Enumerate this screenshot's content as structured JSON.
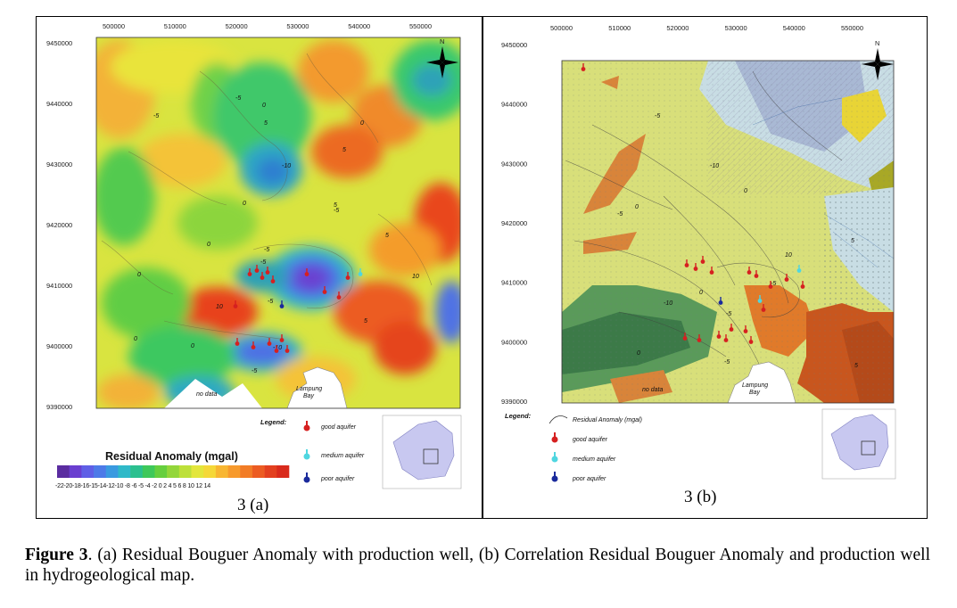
{
  "panel_a": {
    "label": "3 (a)",
    "x_ticks": [
      "500000",
      "510000",
      "520000",
      "530000",
      "540000",
      "550000"
    ],
    "y_ticks": [
      "9450000",
      "9440000",
      "9430000",
      "9420000",
      "9410000",
      "9400000",
      "9390000"
    ],
    "contour_labels": [
      "-5",
      "0",
      "-5",
      "5",
      "0",
      "-10",
      "5",
      "0",
      "-5",
      "0",
      "-5",
      "5",
      "10",
      "-5",
      "0",
      "10",
      "-5",
      "5",
      "0",
      "-10",
      "-5",
      "0",
      "5"
    ],
    "place_no_data": "no data",
    "place_bay_line1": "Lampung",
    "place_bay_line2": "Bay",
    "north": "N",
    "legend_title": "Legend:",
    "legend_good": "good aquifer",
    "legend_medium": "medium aquifer",
    "legend_poor": "poor aquifer",
    "ramp_title": "Residual Anomaly (mgal)",
    "ramp_ticks": "-22-20-18-16-15-14-12-10 -8  -6  -5  -4  -2  0   2   4   5   6   8  10 12 14"
  },
  "panel_b": {
    "label": "3 (b)",
    "x_ticks": [
      "500000",
      "510000",
      "520000",
      "530000",
      "540000",
      "550000"
    ],
    "y_ticks": [
      "9450000",
      "9440000",
      "9430000",
      "9420000",
      "9410000",
      "9400000",
      "9390000"
    ],
    "contour_labels": [
      "-5",
      "0",
      "-5",
      "-10",
      "0",
      "5",
      "-10",
      "-5",
      "0",
      "10",
      "-5",
      "0",
      "-5",
      "5"
    ],
    "place_no_data": "no data",
    "place_bay_line1": "Lampung",
    "place_bay_line2": "Bay",
    "north": "N",
    "legend_title": "Legend:",
    "legend_contour": "Residual Anomaly (mgal)",
    "legend_good": "good aquifer",
    "legend_medium": "medium aquifer",
    "legend_poor": "poor aquifer"
  },
  "colors": {
    "ramp": [
      "#5a2ca0",
      "#6a3fd0",
      "#5f5fe6",
      "#4d7ae8",
      "#3a9ae0",
      "#2fb9c8",
      "#2bc08f",
      "#3ec85a",
      "#66cf3e",
      "#93d63a",
      "#bde03a",
      "#e3e63c",
      "#f5d838",
      "#f8b632",
      "#f79a2c",
      "#f27c26",
      "#ec5c22",
      "#e3401f",
      "#d92a1c"
    ],
    "good_aquifer": "#d62020",
    "medium_aquifer": "#4fd6e0",
    "poor_aquifer": "#1a2a9c"
  },
  "caption": {
    "bold": "Figure 3",
    "text": ". (a) Residual Bouguer Anomaly with production well, (b) Correlation Residual Bouguer Anomaly and production well in hydrogeological map."
  }
}
